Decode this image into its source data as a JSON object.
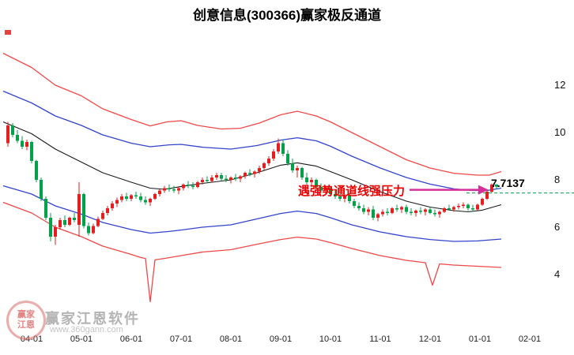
{
  "title": "创意信息(300366)赢家极反通道",
  "annotation": {
    "text": "遇强势通道线强压力",
    "price_label": "7.7137"
  },
  "watermark": {
    "name": "赢家江恩软件",
    "url": "www.360gann.com",
    "logo_line1": "赢家",
    "logo_line2": "江恩"
  },
  "chart_data": {
    "type": "candlestick",
    "title": "创意信息(300366)赢家极反通道",
    "xlabel": "",
    "ylabel": "",
    "current_price": 7.7137,
    "legend": false,
    "grid": false,
    "y_axis": {
      "ticks": [
        12,
        10,
        8,
        6,
        4
      ],
      "visible_range": [
        2.5,
        13.5
      ]
    },
    "x_axis": {
      "ticks": [
        {
          "label": "04-01",
          "day": 0
        },
        {
          "label": "05-01",
          "day": 21
        },
        {
          "label": "06-01",
          "day": 42
        },
        {
          "label": "07-01",
          "day": 63
        },
        {
          "label": "08-01",
          "day": 84
        },
        {
          "label": "09-01",
          "day": 105
        },
        {
          "label": "10-01",
          "day": 126
        },
        {
          "label": "11-01",
          "day": 147
        },
        {
          "label": "12-01",
          "day": 168
        },
        {
          "label": "01-01",
          "day": 189
        },
        {
          "label": "02-01",
          "day": 210
        }
      ]
    },
    "colors": {
      "up": "#e31f1f",
      "down": "#00a148",
      "channel_outer": "#ef4848",
      "channel_inner": "#3344cc",
      "midline": "#1a1a1a",
      "price_line": "#00a148",
      "arrow": "#d6309a",
      "annotation": "#ea0000"
    },
    "series": [
      {
        "name": "upper-red-channel",
        "color": "#ef4848",
        "width": 1.3,
        "points": [
          [
            -12,
            13.35
          ],
          [
            0,
            12.75
          ],
          [
            10,
            12.0
          ],
          [
            21,
            11.55
          ],
          [
            30,
            11.0
          ],
          [
            42,
            10.55
          ],
          [
            50,
            10.28
          ],
          [
            57,
            10.45
          ],
          [
            63,
            10.5
          ],
          [
            70,
            10.3
          ],
          [
            80,
            10.15
          ],
          [
            88,
            10.18
          ],
          [
            96,
            10.4
          ],
          [
            105,
            10.75
          ],
          [
            112,
            10.9
          ],
          [
            120,
            10.7
          ],
          [
            126,
            10.45
          ],
          [
            135,
            10.0
          ],
          [
            147,
            9.4
          ],
          [
            158,
            8.85
          ],
          [
            168,
            8.5
          ],
          [
            178,
            8.28
          ],
          [
            188,
            8.2
          ],
          [
            193,
            8.2
          ],
          [
            198,
            8.35
          ]
        ]
      },
      {
        "name": "upper-blue-channel",
        "color": "#3344cc",
        "width": 1.3,
        "points": [
          [
            -12,
            11.75
          ],
          [
            0,
            11.25
          ],
          [
            10,
            10.7
          ],
          [
            21,
            10.3
          ],
          [
            30,
            9.9
          ],
          [
            42,
            9.55
          ],
          [
            50,
            9.4
          ],
          [
            58,
            9.48
          ],
          [
            63,
            9.5
          ],
          [
            72,
            9.38
          ],
          [
            84,
            9.3
          ],
          [
            95,
            9.45
          ],
          [
            105,
            9.68
          ],
          [
            112,
            9.78
          ],
          [
            120,
            9.65
          ],
          [
            126,
            9.42
          ],
          [
            135,
            9.0
          ],
          [
            147,
            8.5
          ],
          [
            158,
            8.1
          ],
          [
            168,
            7.82
          ],
          [
            178,
            7.62
          ],
          [
            186,
            7.55
          ],
          [
            192,
            7.55
          ],
          [
            198,
            7.65
          ]
        ]
      },
      {
        "name": "black-midline",
        "color": "#1a1a1a",
        "width": 1.1,
        "points": [
          [
            -12,
            10.45
          ],
          [
            0,
            9.95
          ],
          [
            10,
            9.3
          ],
          [
            21,
            8.75
          ],
          [
            30,
            8.3
          ],
          [
            42,
            7.9
          ],
          [
            50,
            7.65
          ],
          [
            56,
            7.6
          ],
          [
            63,
            7.72
          ],
          [
            72,
            7.85
          ],
          [
            84,
            8.0
          ],
          [
            95,
            8.3
          ],
          [
            105,
            8.62
          ],
          [
            112,
            8.72
          ],
          [
            120,
            8.58
          ],
          [
            126,
            8.35
          ],
          [
            135,
            8.0
          ],
          [
            147,
            7.5
          ],
          [
            158,
            7.1
          ],
          [
            168,
            6.85
          ],
          [
            178,
            6.7
          ],
          [
            184,
            6.65
          ],
          [
            190,
            6.72
          ],
          [
            198,
            6.95
          ]
        ]
      },
      {
        "name": "lower-blue-channel",
        "color": "#3344cc",
        "width": 1.3,
        "points": [
          [
            -12,
            7.75
          ],
          [
            0,
            7.4
          ],
          [
            10,
            6.9
          ],
          [
            21,
            6.55
          ],
          [
            30,
            6.2
          ],
          [
            42,
            5.9
          ],
          [
            50,
            5.75
          ],
          [
            58,
            5.82
          ],
          [
            63,
            5.88
          ],
          [
            72,
            6.0
          ],
          [
            84,
            6.1
          ],
          [
            95,
            6.35
          ],
          [
            105,
            6.58
          ],
          [
            112,
            6.68
          ],
          [
            120,
            6.58
          ],
          [
            126,
            6.4
          ],
          [
            135,
            6.1
          ],
          [
            147,
            5.8
          ],
          [
            158,
            5.6
          ],
          [
            168,
            5.48
          ],
          [
            178,
            5.4
          ],
          [
            188,
            5.42
          ],
          [
            198,
            5.5
          ]
        ]
      },
      {
        "name": "lower-red-channel",
        "color": "#ef4848",
        "width": 1.3,
        "points": [
          [
            -12,
            7.05
          ],
          [
            0,
            6.6
          ],
          [
            10,
            6.0
          ],
          [
            21,
            5.6
          ],
          [
            30,
            5.2
          ],
          [
            42,
            4.85
          ],
          [
            46,
            4.72
          ],
          [
            48,
            4.68
          ],
          [
            50,
            2.85
          ],
          [
            52,
            4.62
          ],
          [
            56,
            4.68
          ],
          [
            63,
            4.8
          ],
          [
            72,
            4.95
          ],
          [
            84,
            5.05
          ],
          [
            95,
            5.28
          ],
          [
            105,
            5.48
          ],
          [
            112,
            5.58
          ],
          [
            120,
            5.5
          ],
          [
            126,
            5.35
          ],
          [
            135,
            5.1
          ],
          [
            147,
            4.8
          ],
          [
            158,
            4.6
          ],
          [
            166,
            4.5
          ],
          [
            169,
            3.55
          ],
          [
            172,
            4.45
          ],
          [
            178,
            4.4
          ],
          [
            188,
            4.35
          ],
          [
            198,
            4.3
          ]
        ]
      }
    ],
    "candles": [
      [
        -10,
        9.55,
        10.45,
        9.4,
        10.3
      ],
      [
        -8,
        10.3,
        10.4,
        9.8,
        9.9
      ],
      [
        -6,
        9.9,
        10.1,
        9.55,
        9.65
      ],
      [
        -4,
        9.65,
        9.85,
        9.3,
        9.4
      ],
      [
        -2,
        9.4,
        9.7,
        9.25,
        9.6
      ],
      [
        0,
        9.6,
        9.65,
        8.7,
        8.8
      ],
      [
        2,
        8.8,
        8.85,
        7.9,
        8.0
      ],
      [
        4,
        8.0,
        8.1,
        7.1,
        7.2
      ],
      [
        6,
        7.2,
        7.3,
        6.3,
        6.4
      ],
      [
        8,
        6.4,
        6.6,
        5.4,
        5.6
      ],
      [
        10,
        5.6,
        6.1,
        5.25,
        6.0
      ],
      [
        12,
        6.0,
        6.4,
        5.9,
        6.3
      ],
      [
        14,
        6.3,
        6.5,
        6.0,
        6.1
      ],
      [
        16,
        6.1,
        6.45,
        6.05,
        6.4
      ],
      [
        18,
        6.4,
        6.6,
        6.2,
        6.3
      ],
      [
        20,
        6.1,
        7.9,
        5.6,
        7.4
      ],
      [
        22,
        7.4,
        7.45,
        5.95,
        6.05
      ],
      [
        24,
        6.05,
        6.2,
        5.65,
        5.75
      ],
      [
        26,
        5.75,
        6.15,
        5.7,
        6.05
      ],
      [
        28,
        6.05,
        6.45,
        6.0,
        6.35
      ],
      [
        30,
        6.35,
        6.7,
        6.3,
        6.6
      ],
      [
        32,
        6.6,
        6.9,
        6.5,
        6.8
      ],
      [
        34,
        6.8,
        7.1,
        6.7,
        7.0
      ],
      [
        36,
        7.0,
        7.25,
        6.85,
        7.15
      ],
      [
        38,
        7.15,
        7.4,
        7.05,
        7.3
      ],
      [
        40,
        7.3,
        7.45,
        7.1,
        7.2
      ],
      [
        42,
        7.2,
        7.4,
        7.1,
        7.35
      ],
      [
        44,
        7.35,
        7.5,
        7.2,
        7.3
      ],
      [
        46,
        7.3,
        7.45,
        7.05,
        7.15
      ],
      [
        48,
        7.15,
        7.3,
        6.95,
        7.05
      ],
      [
        50,
        7.05,
        7.25,
        6.9,
        7.2
      ],
      [
        52,
        7.2,
        7.45,
        7.15,
        7.4
      ],
      [
        54,
        7.4,
        7.6,
        7.3,
        7.55
      ],
      [
        56,
        7.55,
        7.75,
        7.45,
        7.65
      ],
      [
        58,
        7.65,
        7.8,
        7.5,
        7.6
      ],
      [
        60,
        7.6,
        7.75,
        7.45,
        7.55
      ],
      [
        62,
        7.55,
        7.7,
        7.4,
        7.65
      ],
      [
        64,
        7.65,
        7.85,
        7.55,
        7.8
      ],
      [
        66,
        7.8,
        7.95,
        7.65,
        7.75
      ],
      [
        68,
        7.75,
        7.9,
        7.6,
        7.7
      ],
      [
        70,
        7.7,
        7.95,
        7.65,
        7.9
      ],
      [
        72,
        7.9,
        8.1,
        7.8,
        8.0
      ],
      [
        74,
        8.0,
        8.15,
        7.85,
        7.95
      ],
      [
        76,
        7.95,
        8.2,
        7.9,
        8.1
      ],
      [
        78,
        8.1,
        8.3,
        8.0,
        8.2
      ],
      [
        80,
        8.2,
        8.3,
        7.95,
        8.05
      ],
      [
        82,
        8.05,
        8.2,
        7.9,
        8.0
      ],
      [
        84,
        8.0,
        8.15,
        7.85,
        8.1
      ],
      [
        86,
        8.1,
        8.25,
        7.95,
        8.05
      ],
      [
        88,
        8.05,
        8.2,
        7.9,
        8.15
      ],
      [
        90,
        8.15,
        8.35,
        8.05,
        8.3
      ],
      [
        92,
        8.3,
        8.45,
        8.15,
        8.25
      ],
      [
        94,
        8.25,
        8.4,
        8.1,
        8.35
      ],
      [
        96,
        8.35,
        8.6,
        8.25,
        8.5
      ],
      [
        98,
        8.5,
        8.75,
        8.4,
        8.7
      ],
      [
        100,
        8.7,
        9.0,
        8.6,
        8.9
      ],
      [
        102,
        8.9,
        9.3,
        8.8,
        9.2
      ],
      [
        104,
        9.2,
        9.75,
        9.1,
        9.55
      ],
      [
        106,
        9.55,
        9.7,
        9.0,
        9.1
      ],
      [
        108,
        9.1,
        9.25,
        8.6,
        8.7
      ],
      [
        110,
        8.7,
        8.9,
        8.3,
        8.4
      ],
      [
        112,
        8.4,
        8.6,
        8.1,
        8.5
      ],
      [
        114,
        8.5,
        8.55,
        8.0,
        8.1
      ],
      [
        116,
        8.1,
        8.3,
        7.8,
        7.9
      ],
      [
        118,
        7.9,
        8.1,
        7.7,
        8.0
      ],
      [
        120,
        8.0,
        8.05,
        7.6,
        7.7
      ],
      [
        122,
        7.7,
        7.85,
        7.45,
        7.55
      ],
      [
        124,
        7.55,
        7.75,
        7.4,
        7.65
      ],
      [
        126,
        7.65,
        7.7,
        7.3,
        7.4
      ],
      [
        128,
        7.4,
        7.55,
        7.2,
        7.3
      ],
      [
        130,
        7.3,
        7.45,
        7.1,
        7.2
      ],
      [
        132,
        7.2,
        7.4,
        7.05,
        7.35
      ],
      [
        134,
        7.35,
        7.45,
        7.0,
        7.1
      ],
      [
        136,
        7.1,
        7.2,
        6.8,
        6.9
      ],
      [
        138,
        6.9,
        7.05,
        6.7,
        6.8
      ],
      [
        140,
        6.8,
        6.95,
        6.55,
        6.65
      ],
      [
        142,
        6.65,
        6.85,
        6.5,
        6.75
      ],
      [
        144,
        6.75,
        6.9,
        6.3,
        6.4
      ],
      [
        146,
        6.4,
        6.6,
        6.25,
        6.55
      ],
      [
        148,
        6.55,
        6.75,
        6.45,
        6.65
      ],
      [
        150,
        6.65,
        6.8,
        6.5,
        6.6
      ],
      [
        152,
        6.6,
        6.85,
        6.55,
        6.8
      ],
      [
        154,
        6.8,
        6.95,
        6.65,
        6.75
      ],
      [
        156,
        6.75,
        6.9,
        6.6,
        6.85
      ],
      [
        158,
        6.85,
        6.95,
        6.55,
        6.65
      ],
      [
        160,
        6.65,
        6.8,
        6.5,
        6.6
      ],
      [
        162,
        6.6,
        6.75,
        6.45,
        6.7
      ],
      [
        164,
        6.7,
        6.85,
        6.55,
        6.65
      ],
      [
        166,
        6.65,
        6.8,
        6.5,
        6.75
      ],
      [
        168,
        6.75,
        6.85,
        6.55,
        6.6
      ],
      [
        170,
        6.6,
        6.75,
        6.45,
        6.55
      ],
      [
        172,
        6.55,
        6.7,
        6.4,
        6.65
      ],
      [
        174,
        6.65,
        6.85,
        6.6,
        6.8
      ],
      [
        176,
        6.8,
        6.95,
        6.7,
        6.75
      ],
      [
        178,
        6.75,
        6.9,
        6.65,
        6.85
      ],
      [
        180,
        6.85,
        7.0,
        6.75,
        6.9
      ],
      [
        182,
        6.9,
        7.05,
        6.8,
        6.95
      ],
      [
        184,
        6.95,
        7.0,
        6.7,
        6.8
      ],
      [
        186,
        6.8,
        6.95,
        6.65,
        6.75
      ],
      [
        188,
        6.75,
        7.0,
        6.7,
        6.95
      ],
      [
        190,
        6.95,
        7.25,
        6.9,
        7.2
      ],
      [
        192,
        7.2,
        7.55,
        7.15,
        7.5
      ],
      [
        194,
        7.5,
        7.85,
        7.45,
        7.8
      ],
      [
        196,
        7.8,
        7.82,
        7.6,
        7.7137
      ]
    ]
  }
}
